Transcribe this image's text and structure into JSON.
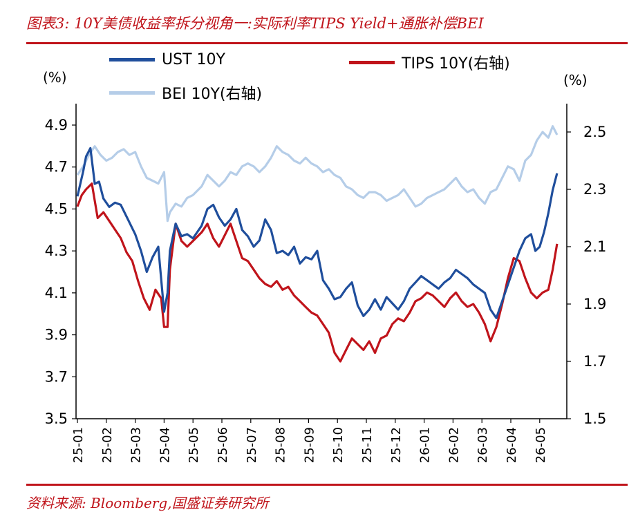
{
  "title": "图表3:  10Y美债收益率拆分视角一:实际利率TIPS Yield+通胀补偿BEI",
  "source": "资料来源:  Bloomberg,国盛证券研究所",
  "units": {
    "left": "(%)",
    "right": "(%)"
  },
  "chart_data": {
    "type": "line",
    "x_categories": [
      "25-01",
      "25-02",
      "25-03",
      "25-04",
      "25-05",
      "25-06",
      "25-07",
      "25-08",
      "25-09",
      "25-10",
      "25-11",
      "25-12",
      "26-01",
      "26-02",
      "26-03",
      "26-04",
      "26-05"
    ],
    "y_left": {
      "lim": [
        3.5,
        4.9
      ],
      "ticks": [
        "4.9",
        "4.7",
        "4.5",
        "4.3",
        "4.1",
        "3.9",
        "3.7",
        "3.5"
      ]
    },
    "y_right": {
      "lim": [
        1.5,
        2.55
      ],
      "ticks": [
        "2.5",
        "2.3",
        "2.1",
        "1.9",
        "1.7",
        "1.5"
      ]
    },
    "grid": false,
    "legend_position": "top",
    "series": [
      {
        "name": "UST 10Y",
        "axis": "left",
        "color": "#1f4e9c",
        "x_months": [
          0,
          0.1,
          0.2,
          0.3,
          0.45,
          0.6,
          0.75,
          0.9,
          1.1,
          1.3,
          1.5,
          1.75,
          2.0,
          2.2,
          2.4,
          2.6,
          2.8,
          3.0,
          3.12,
          3.2,
          3.4,
          3.6,
          3.8,
          4.0,
          4.3,
          4.5,
          4.7,
          4.9,
          5.1,
          5.3,
          5.5,
          5.7,
          5.9,
          6.1,
          6.3,
          6.5,
          6.7,
          6.9,
          7.1,
          7.3,
          7.5,
          7.7,
          7.9,
          8.1,
          8.3,
          8.5,
          8.7,
          8.9,
          9.1,
          9.3,
          9.5,
          9.7,
          9.9,
          10.1,
          10.3,
          10.5,
          10.7,
          10.9,
          11.1,
          11.3,
          11.5,
          11.7,
          11.9,
          12.1,
          12.3,
          12.5,
          12.7,
          12.9,
          13.1,
          13.3,
          13.5,
          13.7,
          13.9,
          14.1,
          14.3,
          14.5,
          14.7,
          14.9,
          15.1,
          15.3,
          15.5,
          15.7,
          15.85,
          16.0,
          16.15,
          16.3,
          16.45,
          16.6
        ],
        "values": [
          4.56,
          4.62,
          4.68,
          4.75,
          4.79,
          4.62,
          4.63,
          4.55,
          4.51,
          4.53,
          4.52,
          4.45,
          4.38,
          4.3,
          4.2,
          4.27,
          4.32,
          4.01,
          4.1,
          4.3,
          4.43,
          4.37,
          4.38,
          4.36,
          4.42,
          4.5,
          4.52,
          4.46,
          4.42,
          4.45,
          4.5,
          4.4,
          4.37,
          4.32,
          4.35,
          4.45,
          4.4,
          4.29,
          4.3,
          4.28,
          4.32,
          4.24,
          4.27,
          4.26,
          4.3,
          4.16,
          4.12,
          4.07,
          4.08,
          4.12,
          4.15,
          4.04,
          3.99,
          4.02,
          4.07,
          4.02,
          4.08,
          4.05,
          4.02,
          4.06,
          4.12,
          4.15,
          4.18,
          4.16,
          4.14,
          4.12,
          4.15,
          4.17,
          4.21,
          4.19,
          4.17,
          4.14,
          4.12,
          4.1,
          4.02,
          3.98,
          4.06,
          4.14,
          4.22,
          4.3,
          4.36,
          4.38,
          4.3,
          4.32,
          4.39,
          4.48,
          4.59,
          4.67
        ]
      },
      {
        "name": "TIPS 10Y(右轴)",
        "axis": "right",
        "color": "#c0141b",
        "x_months": [
          0,
          0.15,
          0.3,
          0.5,
          0.7,
          0.9,
          1.1,
          1.3,
          1.5,
          1.7,
          1.9,
          2.1,
          2.3,
          2.5,
          2.7,
          2.9,
          3.0,
          3.12,
          3.2,
          3.4,
          3.6,
          3.8,
          4.0,
          4.3,
          4.5,
          4.7,
          4.9,
          5.1,
          5.3,
          5.5,
          5.7,
          5.9,
          6.1,
          6.3,
          6.5,
          6.7,
          6.9,
          7.1,
          7.3,
          7.5,
          7.7,
          7.9,
          8.1,
          8.3,
          8.5,
          8.7,
          8.9,
          9.1,
          9.3,
          9.5,
          9.7,
          9.9,
          10.1,
          10.3,
          10.5,
          10.7,
          10.9,
          11.1,
          11.3,
          11.5,
          11.7,
          11.9,
          12.1,
          12.3,
          12.5,
          12.7,
          12.9,
          13.1,
          13.3,
          13.5,
          13.7,
          13.9,
          14.1,
          14.3,
          14.5,
          14.7,
          14.9,
          15.1,
          15.3,
          15.5,
          15.7,
          15.9,
          16.1,
          16.3,
          16.45,
          16.6
        ],
        "values": [
          2.24,
          2.28,
          2.3,
          2.32,
          2.2,
          2.22,
          2.19,
          2.16,
          2.13,
          2.08,
          2.05,
          1.98,
          1.92,
          1.88,
          1.95,
          1.92,
          1.82,
          1.82,
          2.02,
          2.18,
          2.12,
          2.1,
          2.12,
          2.15,
          2.18,
          2.13,
          2.1,
          2.14,
          2.18,
          2.12,
          2.06,
          2.05,
          2.02,
          1.99,
          1.97,
          1.96,
          1.98,
          1.95,
          1.96,
          1.93,
          1.91,
          1.89,
          1.87,
          1.86,
          1.83,
          1.8,
          1.73,
          1.7,
          1.74,
          1.78,
          1.76,
          1.74,
          1.77,
          1.73,
          1.78,
          1.79,
          1.83,
          1.85,
          1.84,
          1.87,
          1.91,
          1.92,
          1.94,
          1.93,
          1.91,
          1.89,
          1.92,
          1.94,
          1.91,
          1.89,
          1.9,
          1.87,
          1.83,
          1.77,
          1.82,
          1.9,
          1.99,
          2.06,
          2.05,
          1.99,
          1.94,
          1.92,
          1.94,
          1.95,
          2.02,
          2.11
        ]
      },
      {
        "name": "BEI 10Y(右轴)",
        "axis": "right",
        "color": "#b5cde8",
        "x_months": [
          0,
          0.2,
          0.4,
          0.6,
          0.8,
          1.0,
          1.2,
          1.4,
          1.6,
          1.8,
          2.0,
          2.2,
          2.4,
          2.6,
          2.8,
          3.0,
          3.12,
          3.2,
          3.4,
          3.6,
          3.8,
          4.0,
          4.3,
          4.5,
          4.7,
          4.9,
          5.1,
          5.3,
          5.5,
          5.7,
          5.9,
          6.1,
          6.3,
          6.5,
          6.7,
          6.9,
          7.1,
          7.3,
          7.5,
          7.7,
          7.9,
          8.1,
          8.3,
          8.5,
          8.7,
          8.9,
          9.1,
          9.3,
          9.5,
          9.7,
          9.9,
          10.1,
          10.3,
          10.5,
          10.7,
          10.9,
          11.1,
          11.3,
          11.5,
          11.7,
          11.9,
          12.1,
          12.3,
          12.5,
          12.7,
          12.9,
          13.1,
          13.3,
          13.5,
          13.7,
          13.9,
          14.1,
          14.3,
          14.5,
          14.7,
          14.9,
          15.1,
          15.3,
          15.5,
          15.7,
          15.9,
          16.1,
          16.3,
          16.45,
          16.6
        ],
        "values": [
          2.35,
          2.38,
          2.42,
          2.45,
          2.42,
          2.4,
          2.41,
          2.43,
          2.44,
          2.42,
          2.43,
          2.38,
          2.34,
          2.33,
          2.32,
          2.36,
          2.19,
          2.22,
          2.25,
          2.24,
          2.27,
          2.28,
          2.31,
          2.35,
          2.33,
          2.31,
          2.33,
          2.36,
          2.35,
          2.38,
          2.39,
          2.38,
          2.36,
          2.38,
          2.41,
          2.45,
          2.43,
          2.42,
          2.4,
          2.39,
          2.41,
          2.39,
          2.38,
          2.36,
          2.37,
          2.35,
          2.34,
          2.31,
          2.3,
          2.28,
          2.27,
          2.29,
          2.29,
          2.28,
          2.26,
          2.27,
          2.28,
          2.3,
          2.27,
          2.24,
          2.25,
          2.27,
          2.28,
          2.29,
          2.3,
          2.32,
          2.34,
          2.31,
          2.29,
          2.3,
          2.27,
          2.25,
          2.29,
          2.3,
          2.34,
          2.38,
          2.37,
          2.33,
          2.4,
          2.42,
          2.47,
          2.5,
          2.48,
          2.52,
          2.49
        ]
      }
    ]
  }
}
